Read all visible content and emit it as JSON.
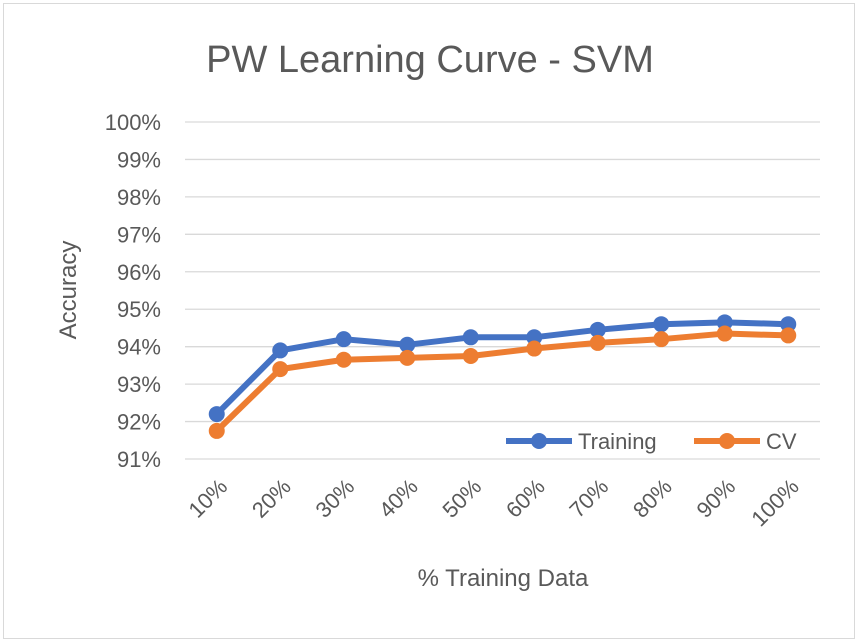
{
  "chart_data": {
    "type": "line",
    "title": "PW Learning Curve - SVM",
    "xlabel": "% Training Data",
    "ylabel": "Accuracy",
    "categories": [
      "10%",
      "20%",
      "30%",
      "40%",
      "50%",
      "60%",
      "70%",
      "80%",
      "90%",
      "100%"
    ],
    "y_ticks": [
      "91%",
      "92%",
      "93%",
      "94%",
      "95%",
      "96%",
      "97%",
      "98%",
      "99%",
      "100%"
    ],
    "ylim": [
      91,
      100
    ],
    "grid": true,
    "legend_position": "bottom-right",
    "series": [
      {
        "name": "Training",
        "color": "#4472C4",
        "values": [
          92.2,
          93.9,
          94.2,
          94.05,
          94.25,
          94.25,
          94.45,
          94.6,
          94.65,
          94.6
        ]
      },
      {
        "name": "CV",
        "color": "#ED7D31",
        "values": [
          91.75,
          93.4,
          93.65,
          93.7,
          93.75,
          93.95,
          94.1,
          94.2,
          94.35,
          94.3
        ]
      }
    ]
  }
}
